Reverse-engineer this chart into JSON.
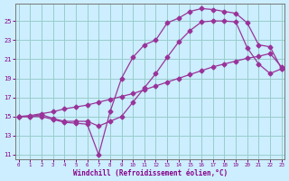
{
  "xlabel": "Windchill (Refroidissement éolien,°C)",
  "bg_color": "#cceeff",
  "line_color": "#993399",
  "grid_color": "#99cccc",
  "axis_color": "#777777",
  "text_color": "#880088",
  "xlim_min": -0.3,
  "xlim_max": 23.3,
  "ylim_min": 10.5,
  "ylim_max": 26.8,
  "xticks": [
    0,
    1,
    2,
    3,
    4,
    5,
    6,
    7,
    8,
    9,
    10,
    11,
    12,
    13,
    14,
    15,
    16,
    17,
    18,
    19,
    20,
    21,
    22,
    23
  ],
  "yticks": [
    11,
    13,
    15,
    17,
    19,
    21,
    23,
    25
  ],
  "line1_x": [
    0,
    1,
    2,
    3,
    4,
    5,
    6,
    7,
    8,
    9,
    10,
    11,
    12,
    13,
    14,
    15,
    16,
    17,
    18,
    19,
    20,
    21,
    22,
    23
  ],
  "line1_y": [
    15.0,
    15.0,
    15.0,
    14.7,
    14.4,
    14.3,
    14.2,
    11.0,
    15.5,
    19.0,
    21.2,
    22.5,
    23.0,
    24.8,
    25.3,
    26.0,
    26.3,
    26.2,
    26.0,
    25.8,
    24.8,
    22.5,
    22.3,
    20.0
  ],
  "line2_x": [
    0,
    1,
    2,
    3,
    4,
    5,
    6,
    7,
    8,
    9,
    10,
    11,
    12,
    13,
    14,
    15,
    16,
    17,
    18,
    19,
    20,
    21,
    22,
    23
  ],
  "line2_y": [
    15.0,
    15.0,
    15.2,
    14.8,
    14.5,
    14.5,
    14.5,
    14.0,
    14.5,
    15.0,
    16.5,
    18.0,
    19.5,
    21.2,
    22.8,
    24.0,
    24.9,
    25.0,
    25.0,
    24.9,
    22.2,
    20.5,
    19.5,
    20.0
  ],
  "line3_x": [
    0,
    1,
    2,
    3,
    4,
    5,
    6,
    7,
    8,
    9,
    10,
    11,
    12,
    13,
    14,
    15,
    16,
    17,
    18,
    19,
    20,
    21,
    22,
    23
  ],
  "line3_y": [
    15.0,
    15.1,
    15.3,
    15.5,
    15.8,
    16.0,
    16.2,
    16.5,
    16.8,
    17.1,
    17.4,
    17.8,
    18.2,
    18.6,
    19.0,
    19.4,
    19.8,
    20.2,
    20.5,
    20.8,
    21.1,
    21.3,
    21.6,
    20.2
  ]
}
